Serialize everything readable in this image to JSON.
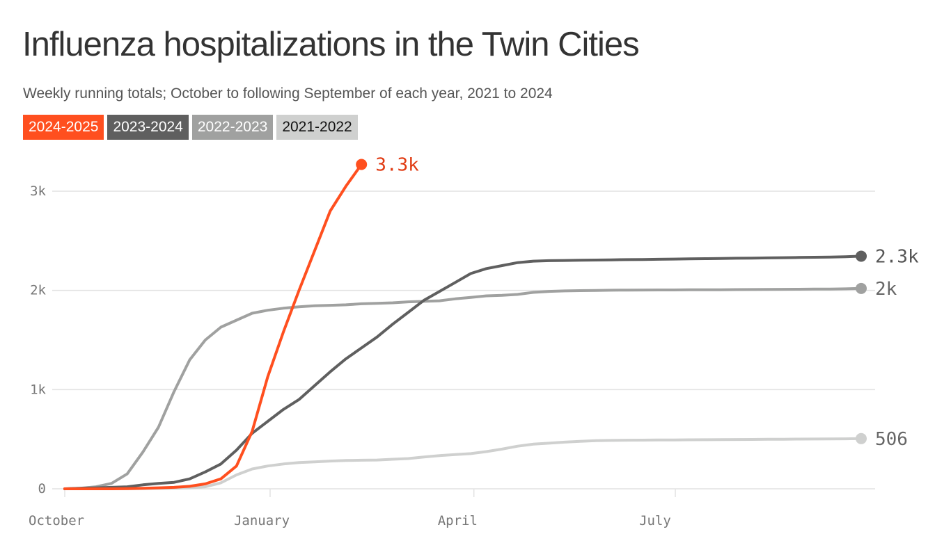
{
  "chart_data": {
    "type": "line",
    "title": "Influenza hospitalizations in the Twin Cities",
    "subtitle": "Weekly running totals; October to following September of each year, 2021 to 2024",
    "xlabel": "",
    "ylabel": "",
    "x_unit": "week of season (starting October)",
    "x_ticks": [
      {
        "label": "October",
        "week": 0
      },
      {
        "label": "January",
        "week": 13.15
      },
      {
        "label": "April",
        "week": 26.2
      },
      {
        "label": "July",
        "week": 39.1
      }
    ],
    "xlim": [
      0,
      51
    ],
    "y_ticks": [
      {
        "label": "0",
        "value": 0
      },
      {
        "label": "1k",
        "value": 1000
      },
      {
        "label": "2k",
        "value": 2000
      },
      {
        "label": "3k",
        "value": 3000
      }
    ],
    "ylim": [
      0,
      3000
    ],
    "grid": "horizontal",
    "legend": "top-left",
    "series": [
      {
        "name": "2021-2022",
        "color": "#cfd0cf",
        "text_color": "#111111",
        "end_label": "506",
        "end_label_color": "#666666",
        "values": [
          0,
          0,
          0,
          0,
          0,
          2,
          4,
          6,
          10,
          20,
          60,
          140,
          200,
          230,
          250,
          265,
          272,
          280,
          285,
          288,
          290,
          298,
          305,
          320,
          335,
          345,
          355,
          375,
          400,
          430,
          450,
          460,
          470,
          478,
          485,
          488,
          490,
          491,
          492,
          493,
          494,
          495,
          496,
          497,
          498,
          499,
          500,
          501,
          502,
          503,
          504,
          506
        ]
      },
      {
        "name": "2022-2023",
        "color": "#a0a1a0",
        "text_color": "#ffffff",
        "end_label": "2k",
        "end_label_color": "#666666",
        "values": [
          0,
          5,
          20,
          55,
          150,
          370,
          620,
          980,
          1300,
          1500,
          1630,
          1700,
          1770,
          1800,
          1820,
          1835,
          1845,
          1850,
          1855,
          1865,
          1870,
          1875,
          1885,
          1890,
          1895,
          1915,
          1930,
          1945,
          1950,
          1960,
          1980,
          1990,
          1995,
          1998,
          2000,
          2002,
          2003,
          2004,
          2005,
          2005,
          2006,
          2006,
          2007,
          2008,
          2009,
          2010,
          2011,
          2012,
          2013,
          2014,
          2016,
          2020
        ]
      },
      {
        "name": "2023-2024",
        "color": "#5f5f5f",
        "text_color": "#ffffff",
        "end_label": "2.3k",
        "end_label_color": "#555555",
        "values": [
          0,
          5,
          10,
          15,
          20,
          40,
          55,
          65,
          100,
          170,
          250,
          390,
          560,
          680,
          800,
          900,
          1040,
          1180,
          1310,
          1420,
          1530,
          1660,
          1780,
          1900,
          1990,
          2080,
          2170,
          2220,
          2250,
          2280,
          2295,
          2300,
          2302,
          2304,
          2306,
          2308,
          2310,
          2312,
          2314,
          2316,
          2318,
          2320,
          2322,
          2324,
          2326,
          2328,
          2330,
          2332,
          2334,
          2336,
          2340,
          2345
        ]
      },
      {
        "name": "2024-2025",
        "color": "#ff4f1f",
        "text_color": "#ffffff",
        "end_label": "3.3k",
        "end_label_color": "#e03a12",
        "values": [
          0,
          0,
          0,
          0,
          2,
          5,
          10,
          15,
          25,
          50,
          100,
          230,
          580,
          1130,
          1580,
          2000,
          2400,
          2800,
          3050,
          3270
        ]
      }
    ],
    "legend_order": [
      "2024-2025",
      "2023-2024",
      "2022-2023",
      "2021-2022"
    ]
  }
}
